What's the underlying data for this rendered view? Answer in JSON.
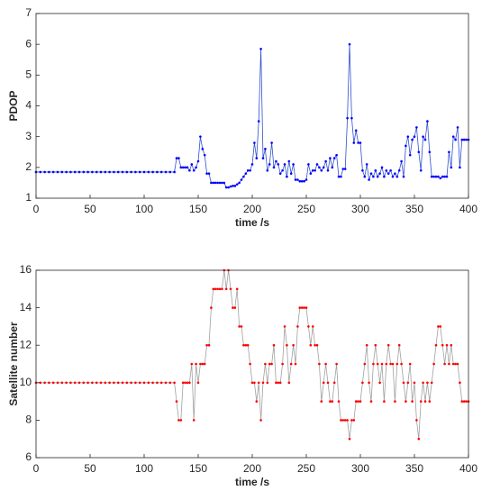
{
  "chart_data": [
    {
      "type": "line",
      "xlabel": "time /s",
      "ylabel": "PDOP",
      "xlim": [
        0,
        400
      ],
      "xticks": [
        0,
        50,
        100,
        150,
        200,
        250,
        300,
        350,
        400
      ],
      "ylim": [
        1,
        7
      ],
      "yticks": [
        1,
        2,
        3,
        4,
        5,
        6,
        7
      ],
      "x": [
        0,
        4,
        8,
        12,
        16,
        20,
        24,
        28,
        32,
        36,
        40,
        44,
        48,
        52,
        56,
        60,
        64,
        68,
        72,
        76,
        80,
        84,
        88,
        92,
        96,
        100,
        104,
        108,
        112,
        116,
        120,
        124,
        128,
        130,
        132,
        134,
        136,
        138,
        140,
        142,
        144,
        146,
        148,
        150,
        152,
        154,
        156,
        158,
        160,
        162,
        164,
        166,
        168,
        170,
        172,
        174,
        176,
        178,
        180,
        182,
        184,
        186,
        188,
        190,
        192,
        194,
        196,
        198,
        200,
        202,
        204,
        206,
        208,
        210,
        212,
        214,
        216,
        218,
        220,
        222,
        224,
        226,
        228,
        230,
        232,
        234,
        236,
        238,
        240,
        242,
        244,
        246,
        248,
        250,
        252,
        254,
        256,
        258,
        260,
        262,
        264,
        266,
        268,
        270,
        272,
        274,
        276,
        278,
        280,
        282,
        284,
        286,
        288,
        290,
        292,
        294,
        296,
        298,
        300,
        302,
        304,
        306,
        308,
        310,
        312,
        314,
        316,
        318,
        320,
        322,
        324,
        326,
        328,
        330,
        332,
        334,
        336,
        338,
        340,
        342,
        344,
        346,
        348,
        350,
        352,
        354,
        356,
        358,
        360,
        362,
        364,
        366,
        368,
        370,
        372,
        374,
        376,
        378,
        380,
        382,
        384,
        386,
        388,
        390,
        392,
        394,
        396,
        398,
        400
      ],
      "series": [
        {
          "color": "#0000ff",
          "line_color": "#3050d0",
          "values": [
            1.85,
            1.85,
            1.85,
            1.85,
            1.85,
            1.85,
            1.85,
            1.85,
            1.85,
            1.85,
            1.85,
            1.85,
            1.85,
            1.85,
            1.85,
            1.85,
            1.85,
            1.85,
            1.85,
            1.85,
            1.85,
            1.85,
            1.85,
            1.85,
            1.85,
            1.85,
            1.85,
            1.85,
            1.85,
            1.85,
            1.85,
            1.85,
            1.85,
            2.3,
            2.3,
            2.0,
            2.0,
            2.0,
            2.0,
            1.9,
            2.1,
            1.9,
            2.0,
            2.2,
            3.0,
            2.6,
            2.4,
            1.8,
            1.8,
            1.5,
            1.5,
            1.5,
            1.5,
            1.5,
            1.5,
            1.5,
            1.35,
            1.35,
            1.38,
            1.4,
            1.4,
            1.45,
            1.5,
            1.6,
            1.7,
            1.8,
            1.9,
            1.9,
            2.1,
            2.8,
            2.3,
            3.5,
            5.85,
            2.3,
            2.6,
            1.9,
            2.1,
            2.8,
            2.0,
            2.2,
            2.1,
            1.8,
            1.9,
            2.1,
            1.7,
            2.2,
            1.8,
            2.1,
            1.6,
            1.6,
            1.55,
            1.55,
            1.55,
            1.6,
            2.1,
            1.8,
            1.9,
            1.9,
            2.1,
            2.0,
            1.9,
            2.0,
            2.2,
            1.9,
            2.3,
            2.0,
            2.3,
            2.4,
            1.7,
            1.7,
            1.95,
            1.95,
            3.6,
            6.0,
            3.6,
            2.8,
            3.2,
            2.8,
            2.8,
            1.9,
            1.7,
            2.1,
            1.6,
            1.8,
            1.7,
            1.9,
            1.7,
            1.8,
            2.0,
            1.7,
            1.9,
            1.8,
            1.9,
            1.7,
            1.8,
            1.7,
            1.9,
            2.2,
            1.7,
            2.7,
            3.0,
            2.4,
            2.9,
            3.0,
            3.3,
            2.5,
            1.9,
            3.0,
            2.9,
            3.5,
            2.5,
            1.7,
            1.7,
            1.7,
            1.7,
            1.65,
            1.7,
            1.7,
            1.7,
            2.5,
            2.0,
            3.0,
            2.9,
            3.3,
            2.0,
            2.9,
            2.9,
            2.9,
            2.9
          ]
        }
      ]
    },
    {
      "type": "line",
      "xlabel": "time /s",
      "ylabel": "Satellite number",
      "xlim": [
        0,
        400
      ],
      "xticks": [
        0,
        50,
        100,
        150,
        200,
        250,
        300,
        350,
        400
      ],
      "ylim": [
        6,
        16
      ],
      "yticks": [
        6,
        8,
        10,
        12,
        14,
        16
      ],
      "x": [
        0,
        4,
        8,
        12,
        16,
        20,
        24,
        28,
        32,
        36,
        40,
        44,
        48,
        52,
        56,
        60,
        64,
        68,
        72,
        76,
        80,
        84,
        88,
        92,
        96,
        100,
        104,
        108,
        112,
        116,
        120,
        124,
        128,
        130,
        132,
        134,
        136,
        138,
        140,
        142,
        144,
        146,
        148,
        150,
        152,
        154,
        156,
        158,
        160,
        162,
        164,
        166,
        168,
        170,
        172,
        174,
        176,
        178,
        180,
        182,
        184,
        186,
        188,
        190,
        192,
        194,
        196,
        198,
        200,
        202,
        204,
        206,
        208,
        210,
        212,
        214,
        216,
        218,
        220,
        222,
        224,
        226,
        228,
        230,
        232,
        234,
        236,
        238,
        240,
        242,
        244,
        246,
        248,
        250,
        252,
        254,
        256,
        258,
        260,
        262,
        264,
        266,
        268,
        270,
        272,
        274,
        276,
        278,
        280,
        282,
        284,
        286,
        288,
        290,
        292,
        294,
        296,
        298,
        300,
        302,
        304,
        306,
        308,
        310,
        312,
        314,
        316,
        318,
        320,
        322,
        324,
        326,
        328,
        330,
        332,
        334,
        336,
        338,
        340,
        342,
        344,
        346,
        348,
        350,
        352,
        354,
        356,
        358,
        360,
        362,
        364,
        366,
        368,
        370,
        372,
        374,
        376,
        378,
        380,
        382,
        384,
        386,
        388,
        390,
        392,
        394,
        396,
        398,
        400
      ],
      "series": [
        {
          "color": "#ff0000",
          "line_color": "#a0a0a0",
          "values": [
            10,
            10,
            10,
            10,
            10,
            10,
            10,
            10,
            10,
            10,
            10,
            10,
            10,
            10,
            10,
            10,
            10,
            10,
            10,
            10,
            10,
            10,
            10,
            10,
            10,
            10,
            10,
            10,
            10,
            10,
            10,
            10,
            10,
            9,
            8,
            8,
            10,
            10,
            10,
            10,
            11,
            8,
            11,
            10,
            11,
            11,
            11,
            12,
            12,
            14,
            15,
            15,
            15,
            15,
            15,
            16,
            15,
            16,
            15,
            14,
            14,
            15,
            13,
            13,
            12,
            12,
            12,
            11,
            10,
            10,
            9,
            10,
            8,
            10,
            11,
            10,
            11,
            11,
            12,
            10,
            10,
            10,
            11,
            13,
            12,
            10,
            11,
            12,
            11,
            13,
            14,
            14,
            14,
            14,
            13,
            12,
            13,
            12,
            12,
            11,
            9,
            10,
            11,
            10,
            9,
            9,
            10,
            11,
            9,
            8,
            8,
            8,
            8,
            7,
            8,
            8,
            9,
            9,
            9,
            10,
            11,
            12,
            10,
            9,
            11,
            12,
            11,
            10,
            11,
            9,
            11,
            12,
            11,
            11,
            9,
            11,
            12,
            11,
            10,
            9,
            10,
            11,
            9,
            10,
            8,
            7,
            9,
            10,
            9,
            10,
            9,
            10,
            11,
            12,
            13,
            13,
            12,
            11,
            12,
            11,
            12,
            11,
            11,
            11,
            10,
            9,
            9,
            9,
            9
          ]
        }
      ]
    }
  ]
}
